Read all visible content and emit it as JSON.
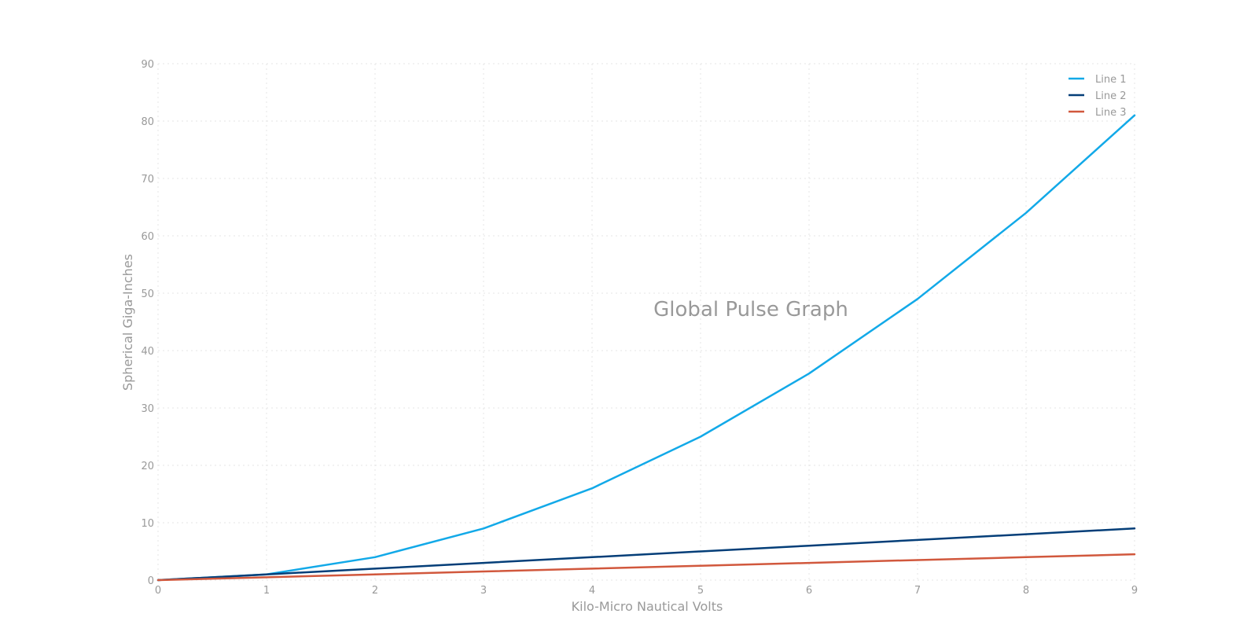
{
  "chart_data": {
    "type": "line",
    "title": "Global Pulse Graph",
    "xlabel": "Kilo-Micro Nautical Volts",
    "ylabel": "Spherical Giga-Inches",
    "x": [
      0,
      1,
      2,
      3,
      4,
      5,
      6,
      7,
      8,
      9
    ],
    "xlim": [
      0,
      9
    ],
    "ylim": [
      0,
      90
    ],
    "xticks": [
      0,
      1,
      2,
      3,
      4,
      5,
      6,
      7,
      8,
      9
    ],
    "yticks": [
      0,
      10,
      20,
      30,
      40,
      50,
      60,
      70,
      80,
      90
    ],
    "grid": true,
    "legend_position": "top-right",
    "series": [
      {
        "name": "Line 1",
        "color": "#12a9e8",
        "values": [
          0,
          1,
          4,
          9,
          16,
          25,
          36,
          49,
          64,
          81
        ]
      },
      {
        "name": "Line 2",
        "color": "#043e78",
        "values": [
          0,
          1,
          2,
          3,
          4,
          5,
          6,
          7,
          8,
          9
        ]
      },
      {
        "name": "Line 3",
        "color": "#d1583d",
        "values": [
          0,
          0.5,
          1,
          1.5,
          2,
          2.5,
          3,
          3.5,
          4,
          4.5
        ]
      }
    ]
  }
}
